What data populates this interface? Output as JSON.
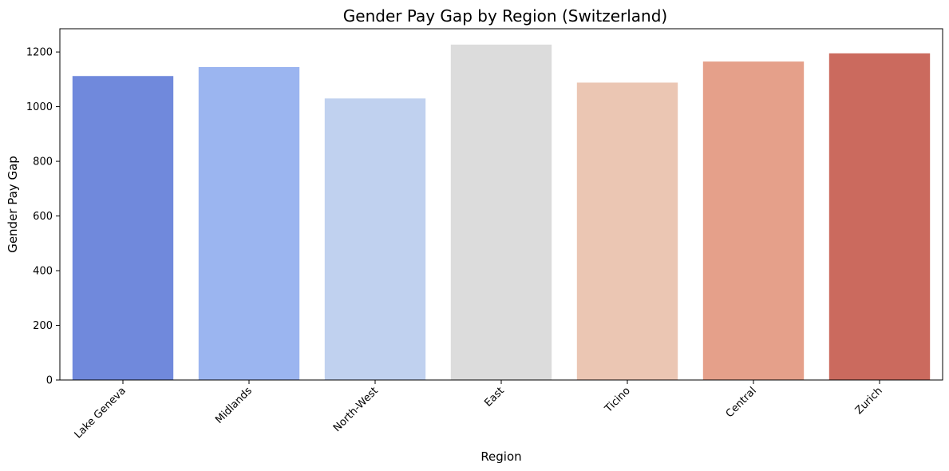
{
  "chart_data": {
    "type": "bar",
    "title": "Gender Pay Gap by Region (Switzerland)",
    "xlabel": "Region",
    "ylabel": "Gender Pay Gap",
    "categories": [
      "Lake Geneva",
      "Midlands",
      "North-West",
      "East",
      "Ticino",
      "Central",
      "Zurich"
    ],
    "values": [
      1112,
      1145,
      1030,
      1227,
      1088,
      1165,
      1195
    ],
    "colors": [
      "#7089dc",
      "#9bb5f0",
      "#c0d1ef",
      "#dcdcdc",
      "#ebc6b3",
      "#e5a08a",
      "#cb6a5e"
    ],
    "ylim": [
      0,
      1285
    ],
    "yticks": [
      0,
      200,
      400,
      600,
      800,
      1000,
      1200
    ],
    "xtick_rotation": 45,
    "grid": false,
    "legend": false
  }
}
